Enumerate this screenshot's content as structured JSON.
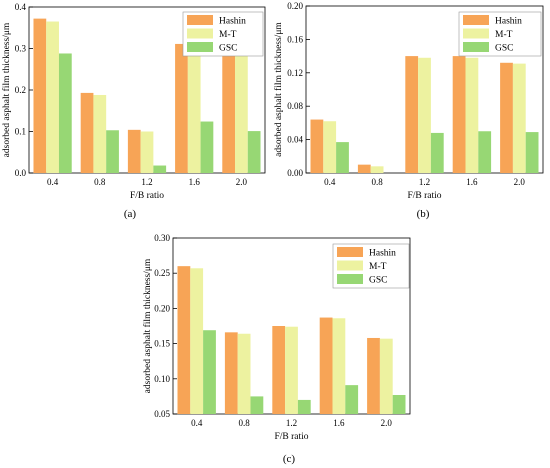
{
  "chart_data": [
    {
      "type": "bar",
      "panel_label": "(a)",
      "categories": [
        "0.4",
        "0.8",
        "1.2",
        "1.6",
        "2.0"
      ],
      "series": [
        {
          "name": "Hashin",
          "color": "#F7A456",
          "values": [
            0.372,
            0.193,
            0.104,
            0.311,
            0.285
          ]
        },
        {
          "name": "M-T",
          "color": "#EDF2A0",
          "values": [
            0.365,
            0.188,
            0.1,
            0.308,
            0.283
          ]
        },
        {
          "name": "GSC",
          "color": "#97D774",
          "values": [
            0.288,
            0.103,
            0.018,
            0.124,
            0.101
          ]
        }
      ],
      "xlabel": "F/B ratio",
      "ylabel": "adsorbed asphalt film thickness/μm",
      "ylim": [
        0,
        0.4
      ],
      "yticks": [
        "0.0",
        "0.1",
        "0.2",
        "0.3",
        "0.4"
      ],
      "legend": "top-right",
      "grid": false
    },
    {
      "type": "bar",
      "panel_label": "(b)",
      "categories": [
        "0.4",
        "0.8",
        "1.2",
        "1.6",
        "2.0"
      ],
      "series": [
        {
          "name": "Hashin",
          "color": "#F7A456",
          "values": [
            0.064,
            0.01,
            0.14,
            0.14,
            0.132
          ]
        },
        {
          "name": "M-T",
          "color": "#EDF2A0",
          "values": [
            0.062,
            0.008,
            0.138,
            0.138,
            0.131
          ]
        },
        {
          "name": "GSC",
          "color": "#97D774",
          "values": [
            0.037,
            0.0,
            0.048,
            0.05,
            0.049
          ]
        }
      ],
      "xlabel": "F/B ratio",
      "ylabel": "adsorbed asphalt film thickness/μm",
      "ylim": [
        0,
        0.2
      ],
      "yticks": [
        "0.00",
        "0.04",
        "0.08",
        "0.12",
        "0.16",
        "0.20"
      ],
      "legend": "top-right",
      "grid": false
    },
    {
      "type": "bar",
      "panel_label": "(c)",
      "categories": [
        "0.4",
        "0.8",
        "1.2",
        "1.6",
        "2.0"
      ],
      "series": [
        {
          "name": "Hashin",
          "color": "#F7A456",
          "values": [
            0.26,
            0.166,
            0.175,
            0.187,
            0.158
          ]
        },
        {
          "name": "M-T",
          "color": "#EDF2A0",
          "values": [
            0.257,
            0.164,
            0.174,
            0.186,
            0.157
          ]
        },
        {
          "name": "GSC",
          "color": "#97D774",
          "values": [
            0.169,
            0.075,
            0.07,
            0.091,
            0.077
          ]
        }
      ],
      "xlabel": "F/B ratio",
      "ylabel": "adsorbed asphalt film thickness/μm",
      "ylim": [
        0.05,
        0.3
      ],
      "yticks": [
        "0.05",
        "0.10",
        "0.15",
        "0.20",
        "0.25",
        "0.30"
      ],
      "legend": "top-right",
      "grid": false
    }
  ]
}
